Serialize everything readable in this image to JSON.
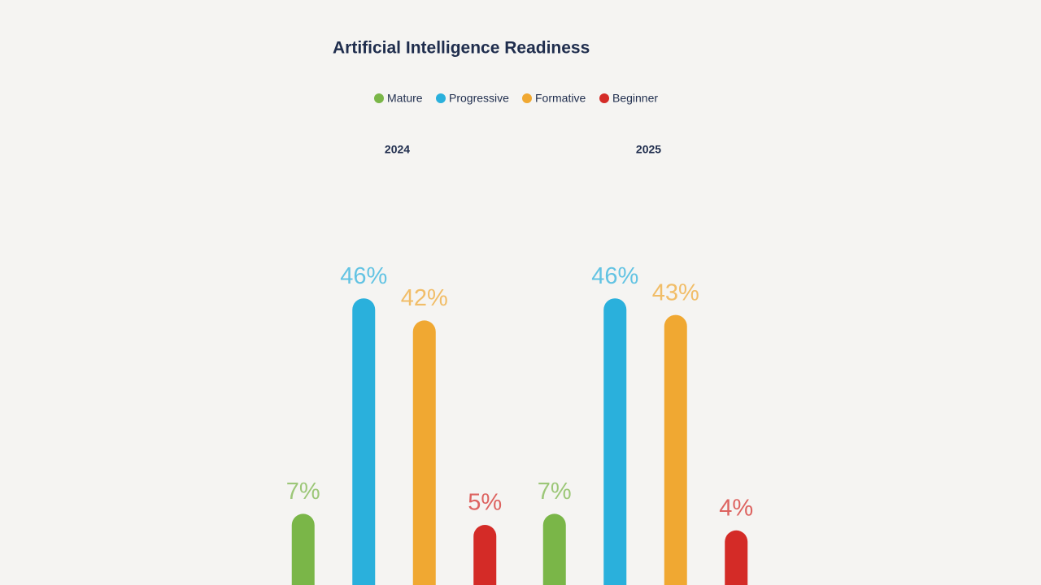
{
  "chart_data": {
    "type": "bar",
    "title": "Artificial Intelligence Readiness",
    "categories": [
      "2024",
      "2025"
    ],
    "series": [
      {
        "name": "Mature",
        "color": "#7ab648",
        "values": [
          7,
          7
        ],
        "value_labels": [
          "7%",
          "7%"
        ]
      },
      {
        "name": "Progressive",
        "color": "#2ab0dc",
        "values": [
          46,
          46
        ],
        "value_labels": [
          "46%",
          "46%"
        ]
      },
      {
        "name": "Formative",
        "color": "#f0a832",
        "values": [
          42,
          43
        ],
        "value_labels": [
          "42%",
          "43%"
        ]
      },
      {
        "name": "Beginner",
        "color": "#d42b27",
        "values": [
          5,
          4
        ],
        "value_labels": [
          "5%",
          "4%"
        ]
      }
    ]
  }
}
